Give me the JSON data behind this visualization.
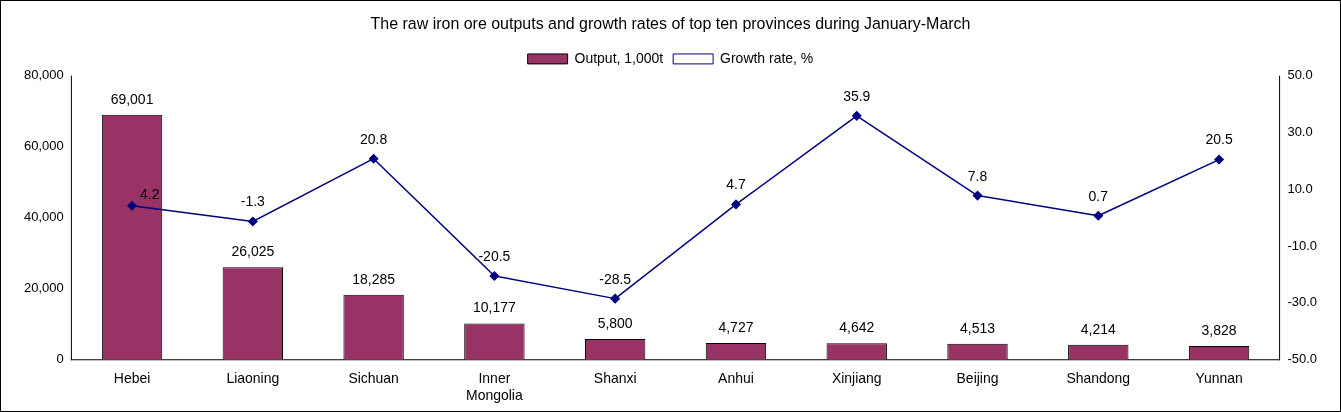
{
  "chart_data": {
    "type": "bar",
    "title": "The raw iron ore outputs and growth rates of top ten provinces during January-March",
    "categories": [
      "Hebei",
      "Liaoning",
      "Sichuan",
      "Inner Mongolia",
      "Shanxi",
      "Anhui",
      "Xinjiang",
      "Beijing",
      "Shandong",
      "Yunnan"
    ],
    "series": [
      {
        "name": "Output, 1,000t",
        "color": "#993366",
        "values": [
          69001,
          26025,
          18285,
          10177,
          5800,
          4727,
          4642,
          4513,
          4214,
          3828
        ],
        "value_labels": [
          "69,001",
          "26,025",
          "18,285",
          "10,177",
          "5,800",
          "4,727",
          "4,642",
          "4,513",
          "4,214",
          "3,828"
        ]
      },
      {
        "name": "Growth rate, %",
        "type": "line",
        "axis": "y2",
        "color": "#000080",
        "marker": "diamond",
        "values": [
          4.2,
          -1.3,
          20.8,
          -20.5,
          -28.5,
          4.7,
          35.9,
          7.8,
          0.7,
          20.5
        ],
        "value_labels": [
          "4.2",
          "-1.3",
          "20.8",
          "-20.5",
          "-28.5",
          "4.7",
          "35.9",
          "7.8",
          "0.7",
          "20.5"
        ]
      }
    ],
    "ylim": [
      0,
      80000
    ],
    "yticks": [
      {
        "value": 0,
        "label": "0"
      },
      {
        "value": 20000,
        "label": "20,000"
      },
      {
        "value": 40000,
        "label": "40,000"
      },
      {
        "value": 60000,
        "label": "60,000"
      },
      {
        "value": 80000,
        "label": "80,000"
      }
    ],
    "y2lim": [
      -50,
      50
    ],
    "y2ticks": [
      {
        "value": -50,
        "label": "-50.0"
      },
      {
        "value": -30,
        "label": "-30.0"
      },
      {
        "value": -10,
        "label": "-10.0"
      },
      {
        "value": 10,
        "label": "10.0"
      },
      {
        "value": 30,
        "label": "30.0"
      },
      {
        "value": 50,
        "label": "50.0"
      }
    ],
    "grid": false,
    "legend": "top"
  }
}
